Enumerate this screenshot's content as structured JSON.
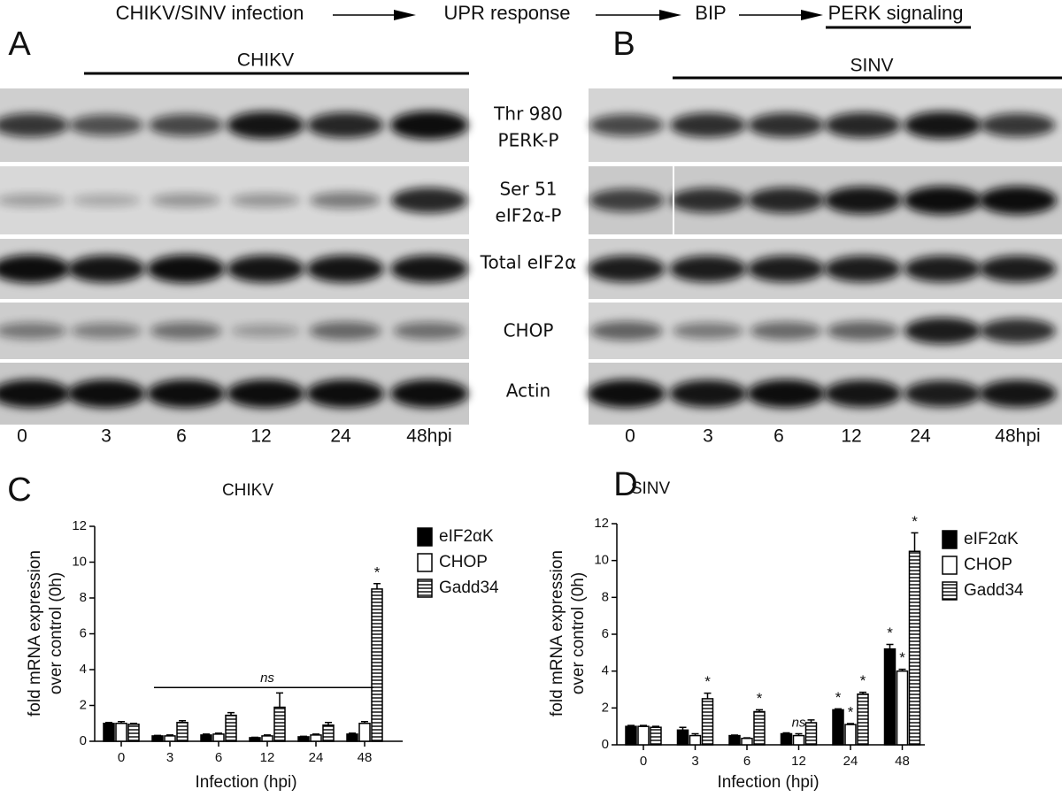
{
  "flow": {
    "steps": [
      "CHIKV/SINV infection",
      "UPR response",
      "BIP",
      "PERK signaling"
    ]
  },
  "panels": [
    {
      "letter": "A",
      "virus": "CHIKV",
      "lanes": [
        "0",
        "3",
        "6",
        "12",
        "24",
        "48hpi"
      ]
    },
    {
      "letter": "B",
      "virus": "SINV",
      "lanes": [
        "0",
        "3",
        "6",
        "12",
        "24",
        "48hpi"
      ]
    }
  ],
  "blot_labels": [
    [
      "Thr 980",
      "PERK-P"
    ],
    [
      "Ser 51",
      "eIF2α-P"
    ],
    [
      "Total eIF2α"
    ],
    [
      "CHOP"
    ],
    [
      "Actin"
    ]
  ],
  "chart_data": [
    {
      "type": "bar",
      "panel": "C",
      "title": "CHIKV",
      "ylabel": [
        "fold mRNA expression",
        "over control (0h)"
      ],
      "xlabel": "Infection (hpi)",
      "categories": [
        "0",
        "3",
        "6",
        "12",
        "24",
        "48"
      ],
      "ylim": [
        0,
        12
      ],
      "yticks": [
        0,
        2,
        4,
        6,
        8,
        10,
        12
      ],
      "annotation": "ns",
      "series": [
        {
          "name": "eIF2αK",
          "color": "#000000",
          "hatch": false,
          "values": [
            1.0,
            0.3,
            0.35,
            0.2,
            0.25,
            0.4
          ],
          "errors": [
            0.05,
            0.03,
            0.05,
            0.02,
            0.03,
            0.05
          ],
          "significance": [
            null,
            null,
            null,
            null,
            null,
            null
          ]
        },
        {
          "name": "CHOP",
          "color": "#ffffff",
          "hatch": false,
          "values": [
            1.0,
            0.3,
            0.4,
            0.3,
            0.35,
            1.0
          ],
          "errors": [
            0.1,
            0.05,
            0.05,
            0.05,
            0.05,
            0.1
          ],
          "significance": [
            null,
            null,
            null,
            null,
            null,
            null
          ]
        },
        {
          "name": "Gadd34",
          "color": "#ffffff",
          "hatch": true,
          "values": [
            0.95,
            1.05,
            1.45,
            1.9,
            0.9,
            8.5
          ],
          "errors": [
            0.05,
            0.1,
            0.15,
            0.8,
            0.15,
            0.3
          ],
          "significance": [
            null,
            null,
            null,
            null,
            null,
            "*"
          ]
        }
      ]
    },
    {
      "type": "bar",
      "panel": "D",
      "title": "SINV",
      "ylabel": [
        "fold mRNA expression",
        "over control (0h)"
      ],
      "xlabel": "Infection (hpi)",
      "categories": [
        "0",
        "3",
        "6",
        "12",
        "24",
        "48"
      ],
      "ylim": [
        0,
        12
      ],
      "yticks": [
        0,
        2,
        4,
        6,
        8,
        10,
        12
      ],
      "series": [
        {
          "name": "eIF2αK",
          "color": "#000000",
          "hatch": false,
          "values": [
            1.0,
            0.8,
            0.5,
            0.6,
            1.9,
            5.2
          ],
          "errors": [
            0.05,
            0.15,
            0.03,
            0.05,
            0.05,
            0.25
          ],
          "significance": [
            null,
            null,
            null,
            null,
            "*",
            "*"
          ]
        },
        {
          "name": "CHOP",
          "color": "#ffffff",
          "hatch": false,
          "values": [
            1.0,
            0.5,
            0.35,
            0.5,
            1.1,
            4.0
          ],
          "errors": [
            0.05,
            0.1,
            0.03,
            0.1,
            0.05,
            0.1
          ],
          "significance": [
            null,
            null,
            null,
            "ns",
            "*",
            "*"
          ]
        },
        {
          "name": "Gadd34",
          "color": "#ffffff",
          "hatch": true,
          "values": [
            0.95,
            2.5,
            1.8,
            1.2,
            2.75,
            10.5
          ],
          "errors": [
            0.05,
            0.3,
            0.1,
            0.15,
            0.1,
            1.0
          ],
          "significance": [
            null,
            "*",
            "*",
            null,
            "*",
            "*"
          ]
        }
      ]
    }
  ]
}
